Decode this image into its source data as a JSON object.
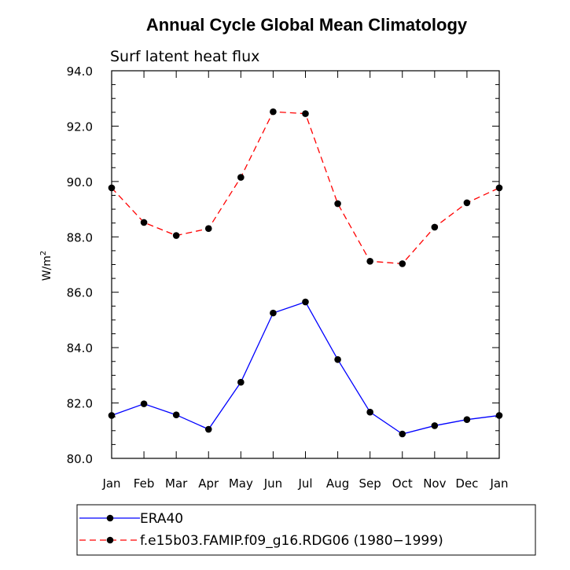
{
  "chart_data": {
    "type": "line",
    "title": "Annual Cycle Global Mean Climatology",
    "subtitle": "Surf latent heat flux",
    "ylabel_base": "W/m",
    "ylabel_sup": "2",
    "xlabel": "",
    "categories": [
      "Jan",
      "Feb",
      "Mar",
      "Apr",
      "May",
      "Jun",
      "Jul",
      "Aug",
      "Sep",
      "Oct",
      "Nov",
      "Dec",
      "Jan"
    ],
    "ylim": [
      80.0,
      94.0
    ],
    "yticks": [
      "80.0",
      "82.0",
      "84.0",
      "86.0",
      "88.0",
      "90.0",
      "92.0",
      "94.0"
    ],
    "grid": false,
    "legend_position": "bottom",
    "series": [
      {
        "name": "ERA40",
        "color": "#0000ff",
        "dash": "solid",
        "values": [
          81.55,
          81.97,
          81.57,
          81.05,
          82.75,
          85.25,
          85.65,
          83.57,
          81.67,
          80.88,
          81.18,
          81.4,
          81.55
        ]
      },
      {
        "name": "f.e15b03.FAMIP.f09_g16.RDG06 (1980−1999)",
        "color": "#ff0000",
        "dash": "dashed",
        "values": [
          89.77,
          88.52,
          88.05,
          88.3,
          90.15,
          92.52,
          92.45,
          89.2,
          87.12,
          87.03,
          88.35,
          89.23,
          89.77
        ]
      }
    ]
  }
}
